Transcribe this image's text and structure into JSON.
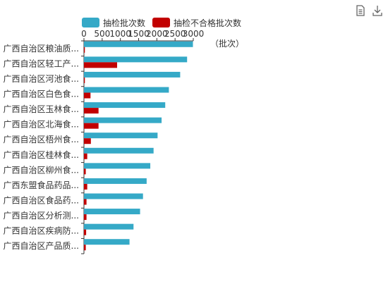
{
  "toolbar": {
    "data_view_icon": "data-view-icon",
    "save_image_icon": "download-icon"
  },
  "colors": {
    "inspected": "#35a9c7",
    "unqualified": "#c20000",
    "axis": "#333333",
    "text": "#333333"
  },
  "chart_data": {
    "type": "bar",
    "orientation": "horizontal",
    "unit_label": "（批次）",
    "x_ticks": [
      "0",
      "500",
      "1000",
      "1500",
      "2000",
      "2500",
      "3000"
    ],
    "xlim": [
      0,
      3000
    ],
    "legend_position": "top",
    "categories": [
      "广西自治区粮油质...",
      "广西自治区轻工产...",
      "广西自治区河池食...",
      "广西自治区白色食...",
      "广西自治区玉林食...",
      "广西自治区北海食...",
      "广西自治区梧州食...",
      "广西自治区桂林食...",
      "广西自治区柳州食...",
      "广西东盟食品药品...",
      "广西自治区食品药...",
      "广西自治区分析测...",
      "广西自治区疾病防...",
      "广西自治区产品质..."
    ],
    "series": [
      {
        "name": "抽检批次数",
        "values": [
          2990,
          2830,
          2640,
          2330,
          2230,
          2130,
          2020,
          1910,
          1820,
          1720,
          1620,
          1540,
          1360,
          1250
        ]
      },
      {
        "name": "抽检不合格批次数",
        "values": [
          25,
          910,
          25,
          180,
          400,
          400,
          190,
          90,
          50,
          90,
          70,
          70,
          60,
          50
        ]
      }
    ]
  }
}
